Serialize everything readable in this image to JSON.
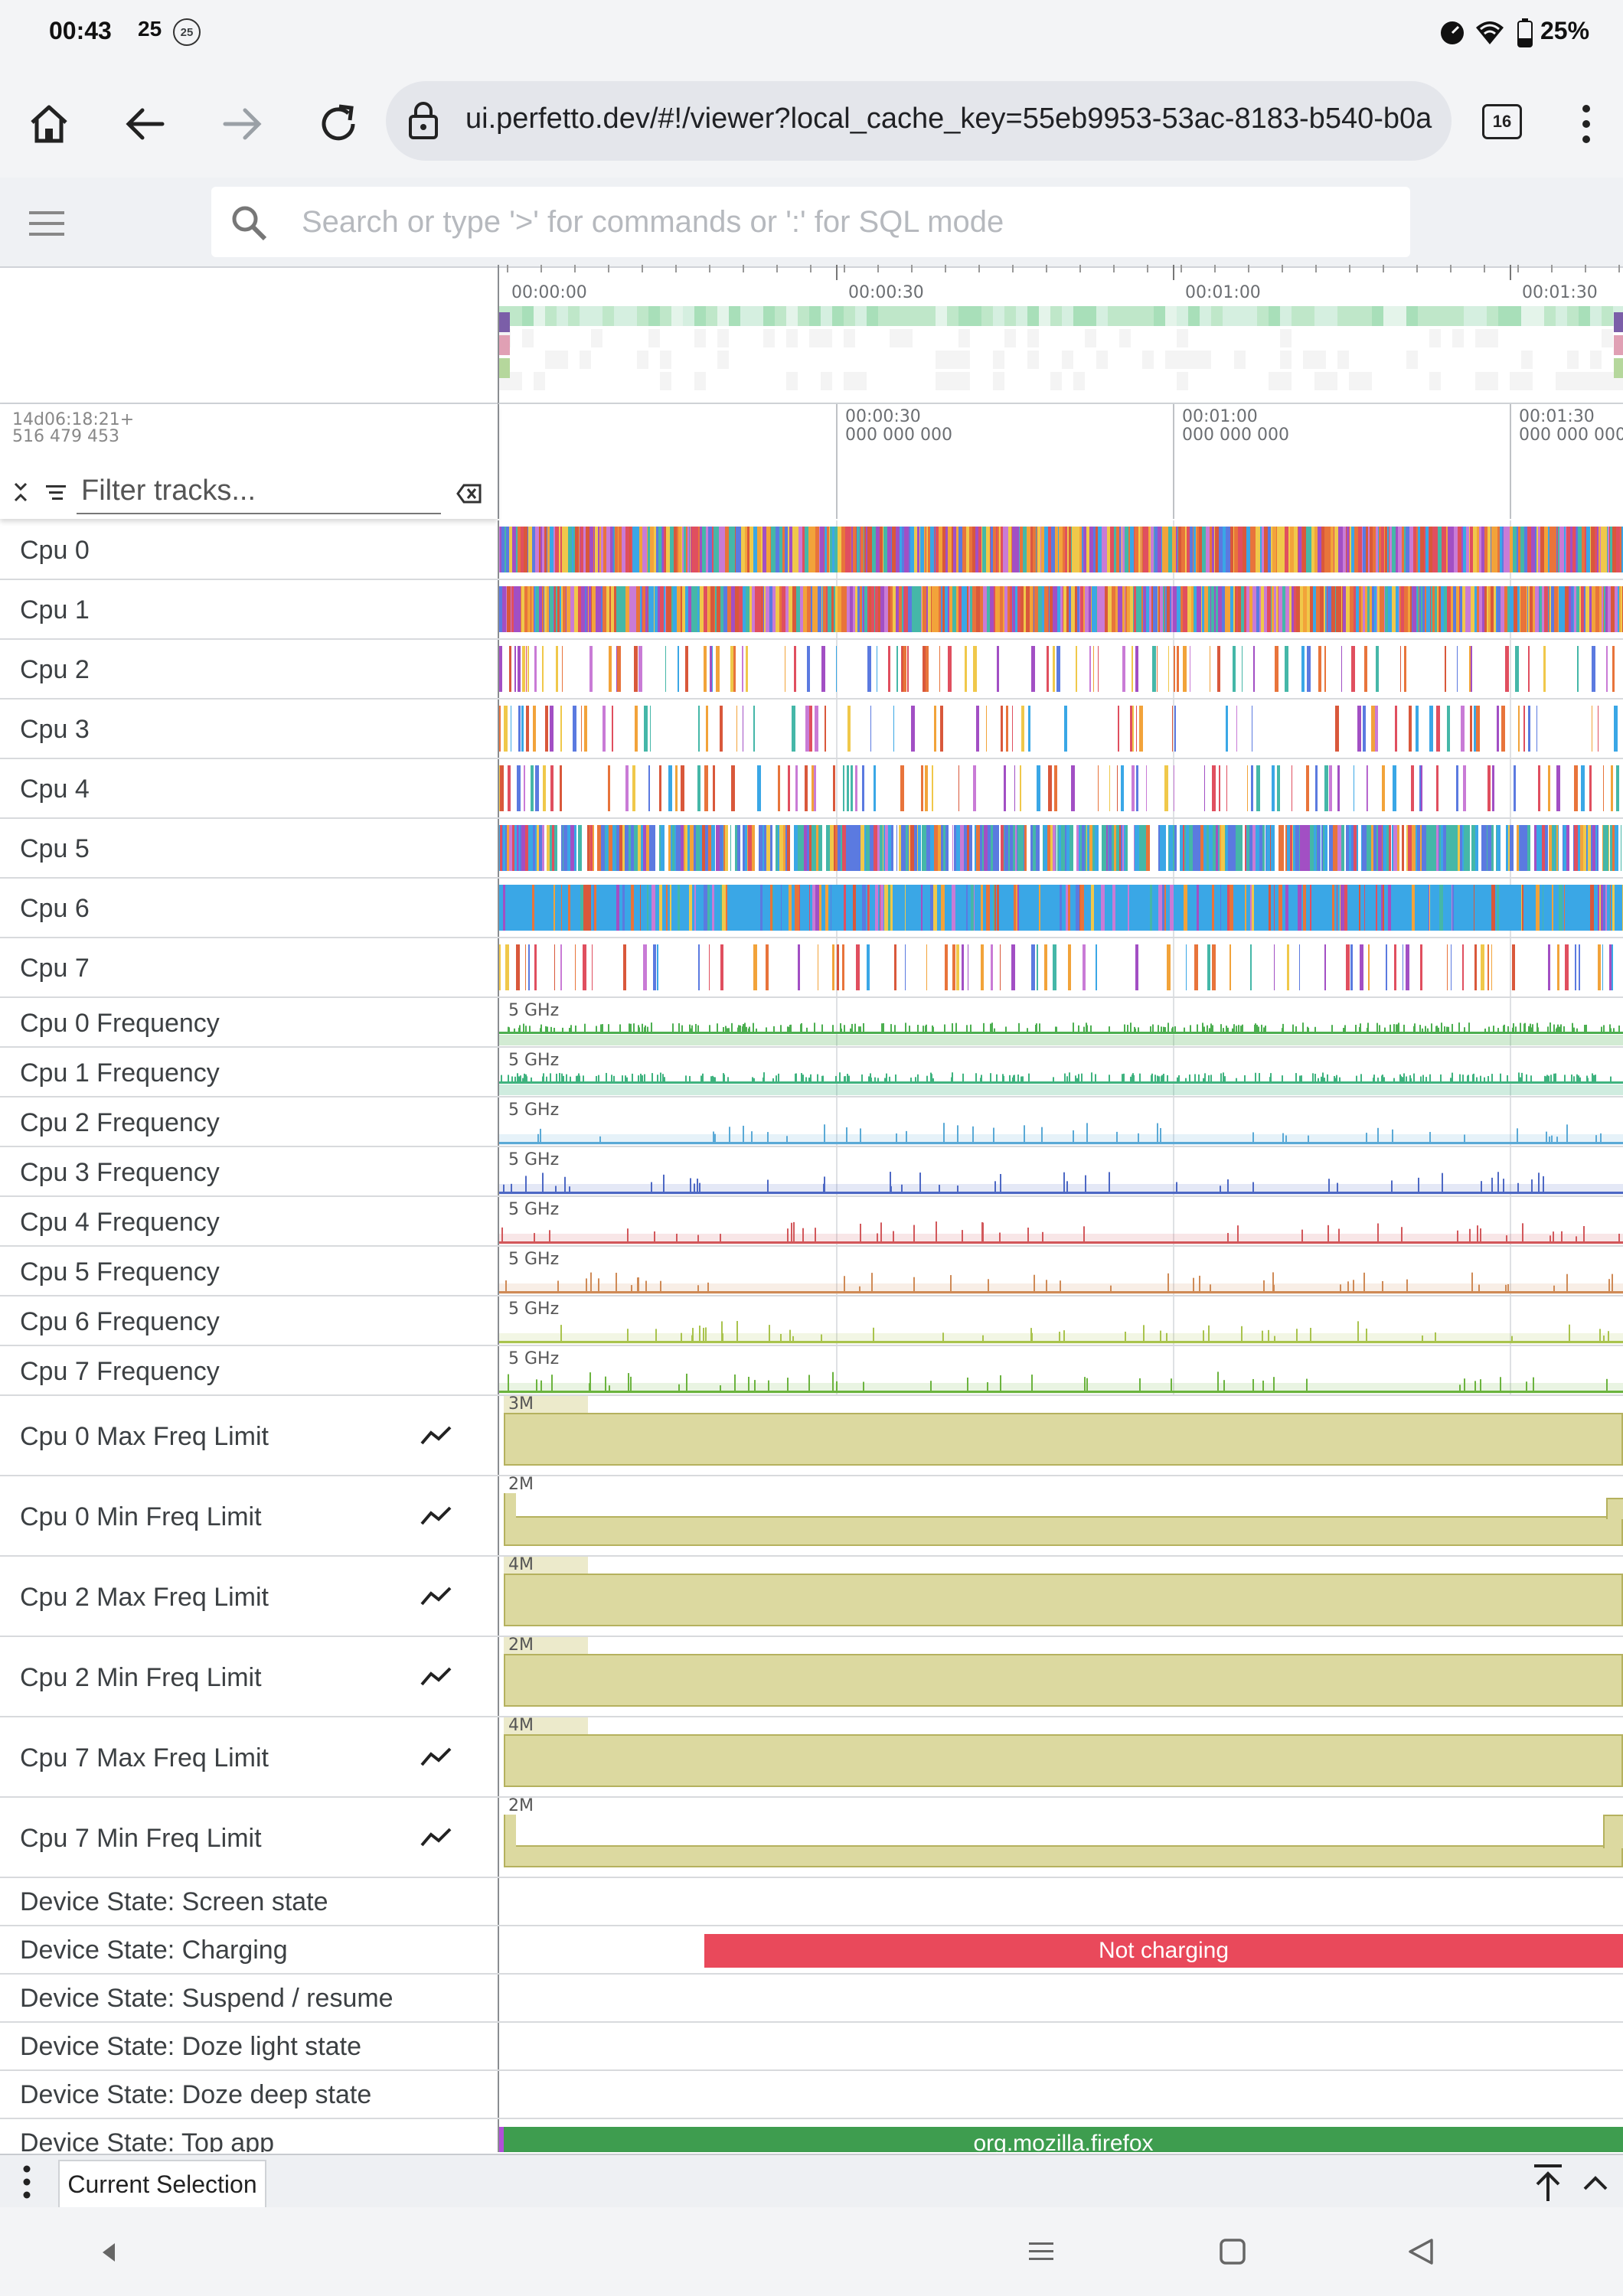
{
  "status_bar": {
    "time": "00:43",
    "notif_count": "25",
    "notif_badge": "25",
    "battery": "25%"
  },
  "browser": {
    "url": "ui.perfetto.dev/#!/viewer?local_cache_key=55eb9953-53ac-8183-b540-b0a",
    "tab_count": "16"
  },
  "omnibox": {
    "placeholder": "Search or type '>' for commands or ':' for SQL mode"
  },
  "overview": {
    "time_labels": [
      "00:00:00",
      "00:00:30",
      "00:01:00",
      "00:01:30"
    ]
  },
  "timeline": {
    "offset_line1": "14d06:18:21+",
    "offset_line2": "516 479 453",
    "ticks": [
      {
        "label1": "00:00:30",
        "label2": "000 000 000"
      },
      {
        "label1": "00:01:00",
        "label2": "000 000 000"
      },
      {
        "label1": "00:01:30",
        "label2": "000 000 000"
      }
    ],
    "filter_placeholder": "Filter tracks..."
  },
  "cpu_tracks": [
    "Cpu 0",
    "Cpu 1",
    "Cpu 2",
    "Cpu 3",
    "Cpu 4",
    "Cpu 5",
    "Cpu 6",
    "Cpu 7"
  ],
  "freq_tracks": [
    {
      "name": "Cpu 0 Frequency",
      "scale": "5 GHz",
      "color": "#4caf50"
    },
    {
      "name": "Cpu 1 Frequency",
      "scale": "5 GHz",
      "color": "#3fb37f"
    },
    {
      "name": "Cpu 2 Frequency",
      "scale": "5 GHz",
      "color": "#5aa9d6"
    },
    {
      "name": "Cpu 3 Frequency",
      "scale": "5 GHz",
      "color": "#4d68c4"
    },
    {
      "name": "Cpu 4 Frequency",
      "scale": "5 GHz",
      "color": "#d2585b"
    },
    {
      "name": "Cpu 5 Frequency",
      "scale": "5 GHz",
      "color": "#cf8a56"
    },
    {
      "name": "Cpu 6 Frequency",
      "scale": "5 GHz",
      "color": "#a9c34d"
    },
    {
      "name": "Cpu 7 Frequency",
      "scale": "5 GHz",
      "color": "#6bb33e"
    }
  ],
  "limit_tracks": [
    {
      "name": "Cpu 0 Max Freq Limit",
      "scale": "3M"
    },
    {
      "name": "Cpu 0 Min Freq Limit",
      "scale": "2M"
    },
    {
      "name": "Cpu 2 Max Freq Limit",
      "scale": "4M"
    },
    {
      "name": "Cpu 2 Min Freq Limit",
      "scale": "2M"
    },
    {
      "name": "Cpu 7 Max Freq Limit",
      "scale": "4M"
    },
    {
      "name": "Cpu 7 Min Freq Limit",
      "scale": "2M"
    }
  ],
  "device_tracks": [
    {
      "name": "Device State: Screen state",
      "bar": ""
    },
    {
      "name": "Device State: Charging",
      "bar": "Not charging",
      "color": "#e9495b"
    },
    {
      "name": "Device State: Suspend / resume",
      "bar": ""
    },
    {
      "name": "Device State: Doze light state",
      "bar": ""
    },
    {
      "name": "Device State: Doze deep state",
      "bar": ""
    },
    {
      "name": "Device State: Top app",
      "bar": "org.mozilla.firefox",
      "color": "#3e9d4f"
    }
  ],
  "bottom_panel": {
    "tab": "Current Selection"
  },
  "icons": {
    "home": "home-icon",
    "back": "back-arrow-icon",
    "forward": "forward-arrow-icon",
    "reload": "reload-icon",
    "lock": "lock-icon",
    "more": "more-vert-icon",
    "menu": "hamburger-menu-icon",
    "search": "search-icon",
    "collapse": "collapse-all-icon",
    "filter": "filter-icon",
    "clear": "clear-filter-icon",
    "chart": "chart-line-icon",
    "wifi": "wifi-icon",
    "battery_icon": "battery-icon"
  }
}
